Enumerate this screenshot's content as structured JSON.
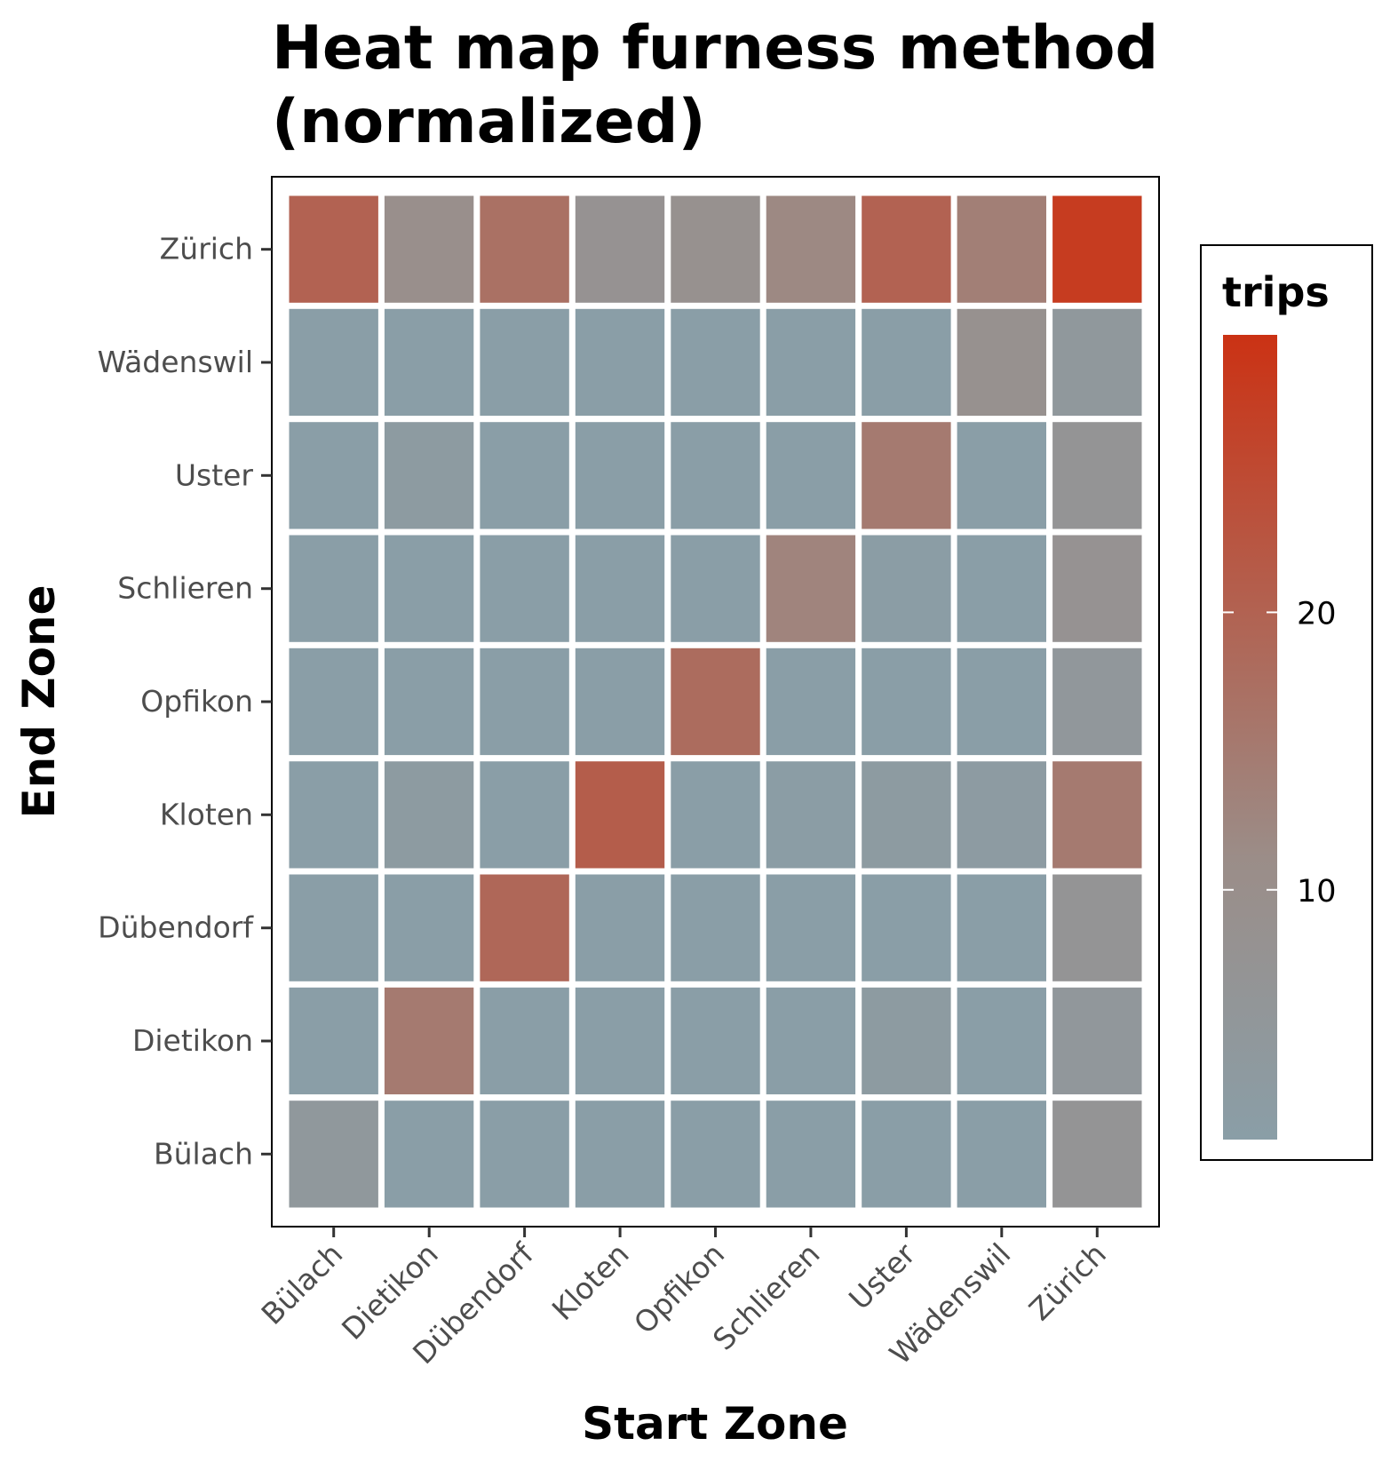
{
  "chart_data": {
    "type": "heatmap",
    "title_lines": [
      "Heat map furness method",
      "(normalized)"
    ],
    "xlabel": "Start Zone",
    "ylabel": "End Zone",
    "x_categories": [
      "Bülach",
      "Dietikon",
      "Dübendorf",
      "Kloten",
      "Opfikon",
      "Schlieren",
      "Uster",
      "Wädenswil",
      "Zürich"
    ],
    "y_categories": [
      "Bülach",
      "Dietikon",
      "Dübendorf",
      "Kloten",
      "Opfikon",
      "Schlieren",
      "Uster",
      "Wädenswil",
      "Zürich"
    ],
    "values": [
      [
        4.5,
        1,
        1,
        1,
        1,
        1,
        1,
        1,
        7
      ],
      [
        1,
        15,
        1,
        1,
        1,
        1,
        3,
        1,
        5
      ],
      [
        1,
        1,
        19,
        1,
        1,
        1,
        1,
        1,
        7
      ],
      [
        1,
        3,
        1,
        21,
        1,
        1.5,
        3,
        2.5,
        15
      ],
      [
        1,
        1,
        1,
        1,
        18,
        1,
        1,
        1,
        5
      ],
      [
        1,
        1,
        1,
        1,
        1,
        13,
        1.5,
        1,
        8
      ],
      [
        1,
        3,
        1,
        1,
        1,
        1,
        15,
        1,
        7
      ],
      [
        1,
        1,
        1,
        1,
        1,
        1,
        1,
        9,
        4.5
      ],
      [
        20,
        10,
        17,
        8,
        9,
        12,
        20,
        14,
        28
      ]
    ],
    "value_note": "values[i][j]: End Zone y_categories[i], Start Zone x_categories[j]",
    "colorbar": {
      "title": "trips",
      "range": [
        1,
        30
      ],
      "ticks": [
        10,
        20
      ],
      "low_color": "#8a9ea7",
      "mid_color": "#9b8d88",
      "high_color": "#cb3214"
    }
  }
}
